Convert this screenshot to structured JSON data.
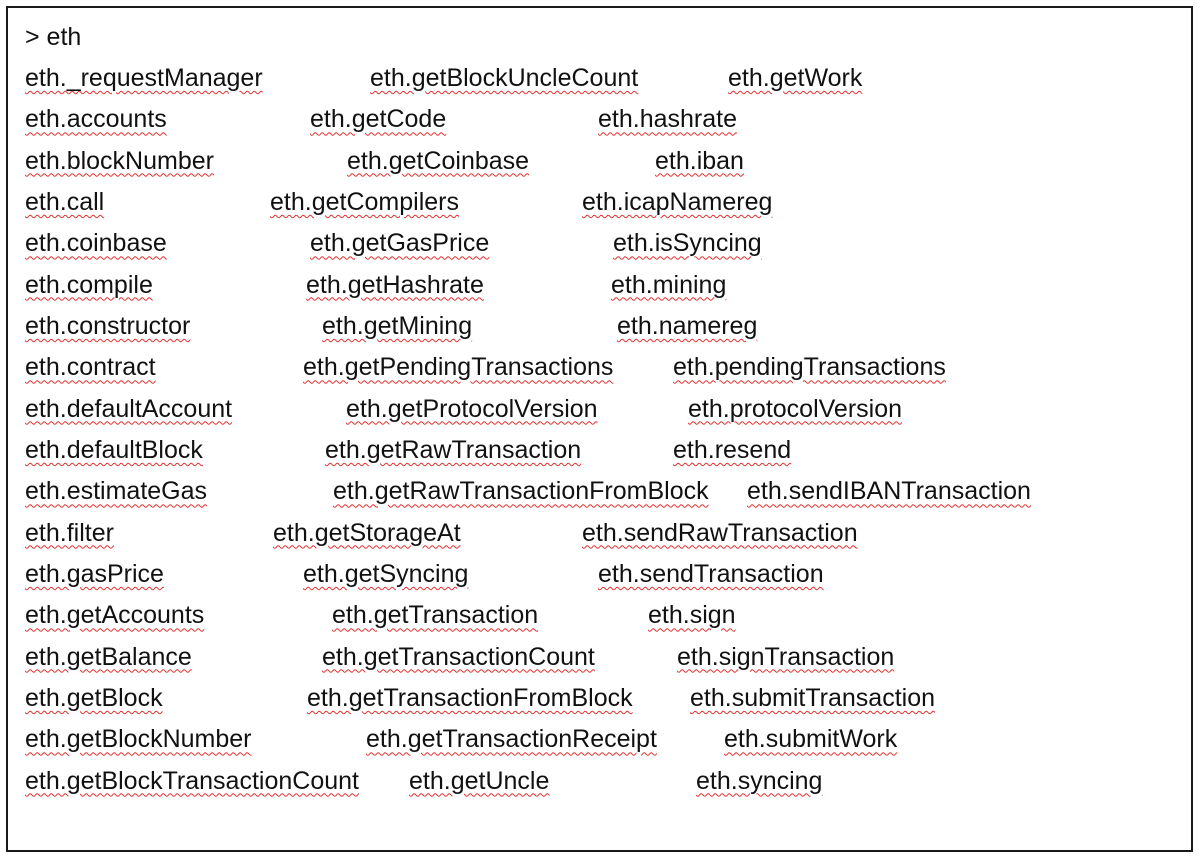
{
  "prompt": "> eth",
  "columns": [
    [
      "eth._requestManager",
      "eth.accounts",
      "eth.blockNumber",
      "eth.call",
      "eth.coinbase",
      "eth.compile",
      "eth.constructor",
      "eth.contract",
      "eth.defaultAccount",
      "eth.defaultBlock",
      "eth.estimateGas",
      "eth.filter",
      "eth.gasPrice",
      "eth.getAccounts",
      "eth.getBalance",
      "eth.getBlock",
      "eth.getBlockNumber",
      "eth.getBlockTransactionCount"
    ],
    [
      "eth.getBlockUncleCount",
      "eth.getCode",
      "eth.getCoinbase",
      "eth.getCompilers",
      "eth.getGasPrice",
      "eth.getHashrate",
      "eth.getMining",
      "eth.getPendingTransactions",
      "eth.getProtocolVersion",
      "eth.getRawTransaction",
      "eth.getRawTransactionFromBlock",
      "eth.getStorageAt",
      "eth.getSyncing",
      "eth.getTransaction",
      "eth.getTransactionCount",
      "eth.getTransactionFromBlock",
      "eth.getTransactionReceipt",
      "eth.getUncle"
    ],
    [
      "eth.getWork",
      "eth.hashrate",
      "eth.iban",
      "eth.icapNamereg",
      "eth.isSyncing",
      "eth.mining",
      "eth.namereg",
      "eth.pendingTransactions",
      "eth.protocolVersion",
      "eth.resend",
      "eth.sendIBANTransaction",
      "eth.sendRawTransaction",
      "eth.sendTransaction",
      "eth.sign",
      "eth.signTransaction",
      "eth.submitTransaction",
      "eth.submitWork",
      "eth.syncing"
    ]
  ],
  "colors": {
    "text": "#111111",
    "spellcheck_underline": "#e03030",
    "border": "#1a1a1a",
    "background": "#ffffff"
  }
}
